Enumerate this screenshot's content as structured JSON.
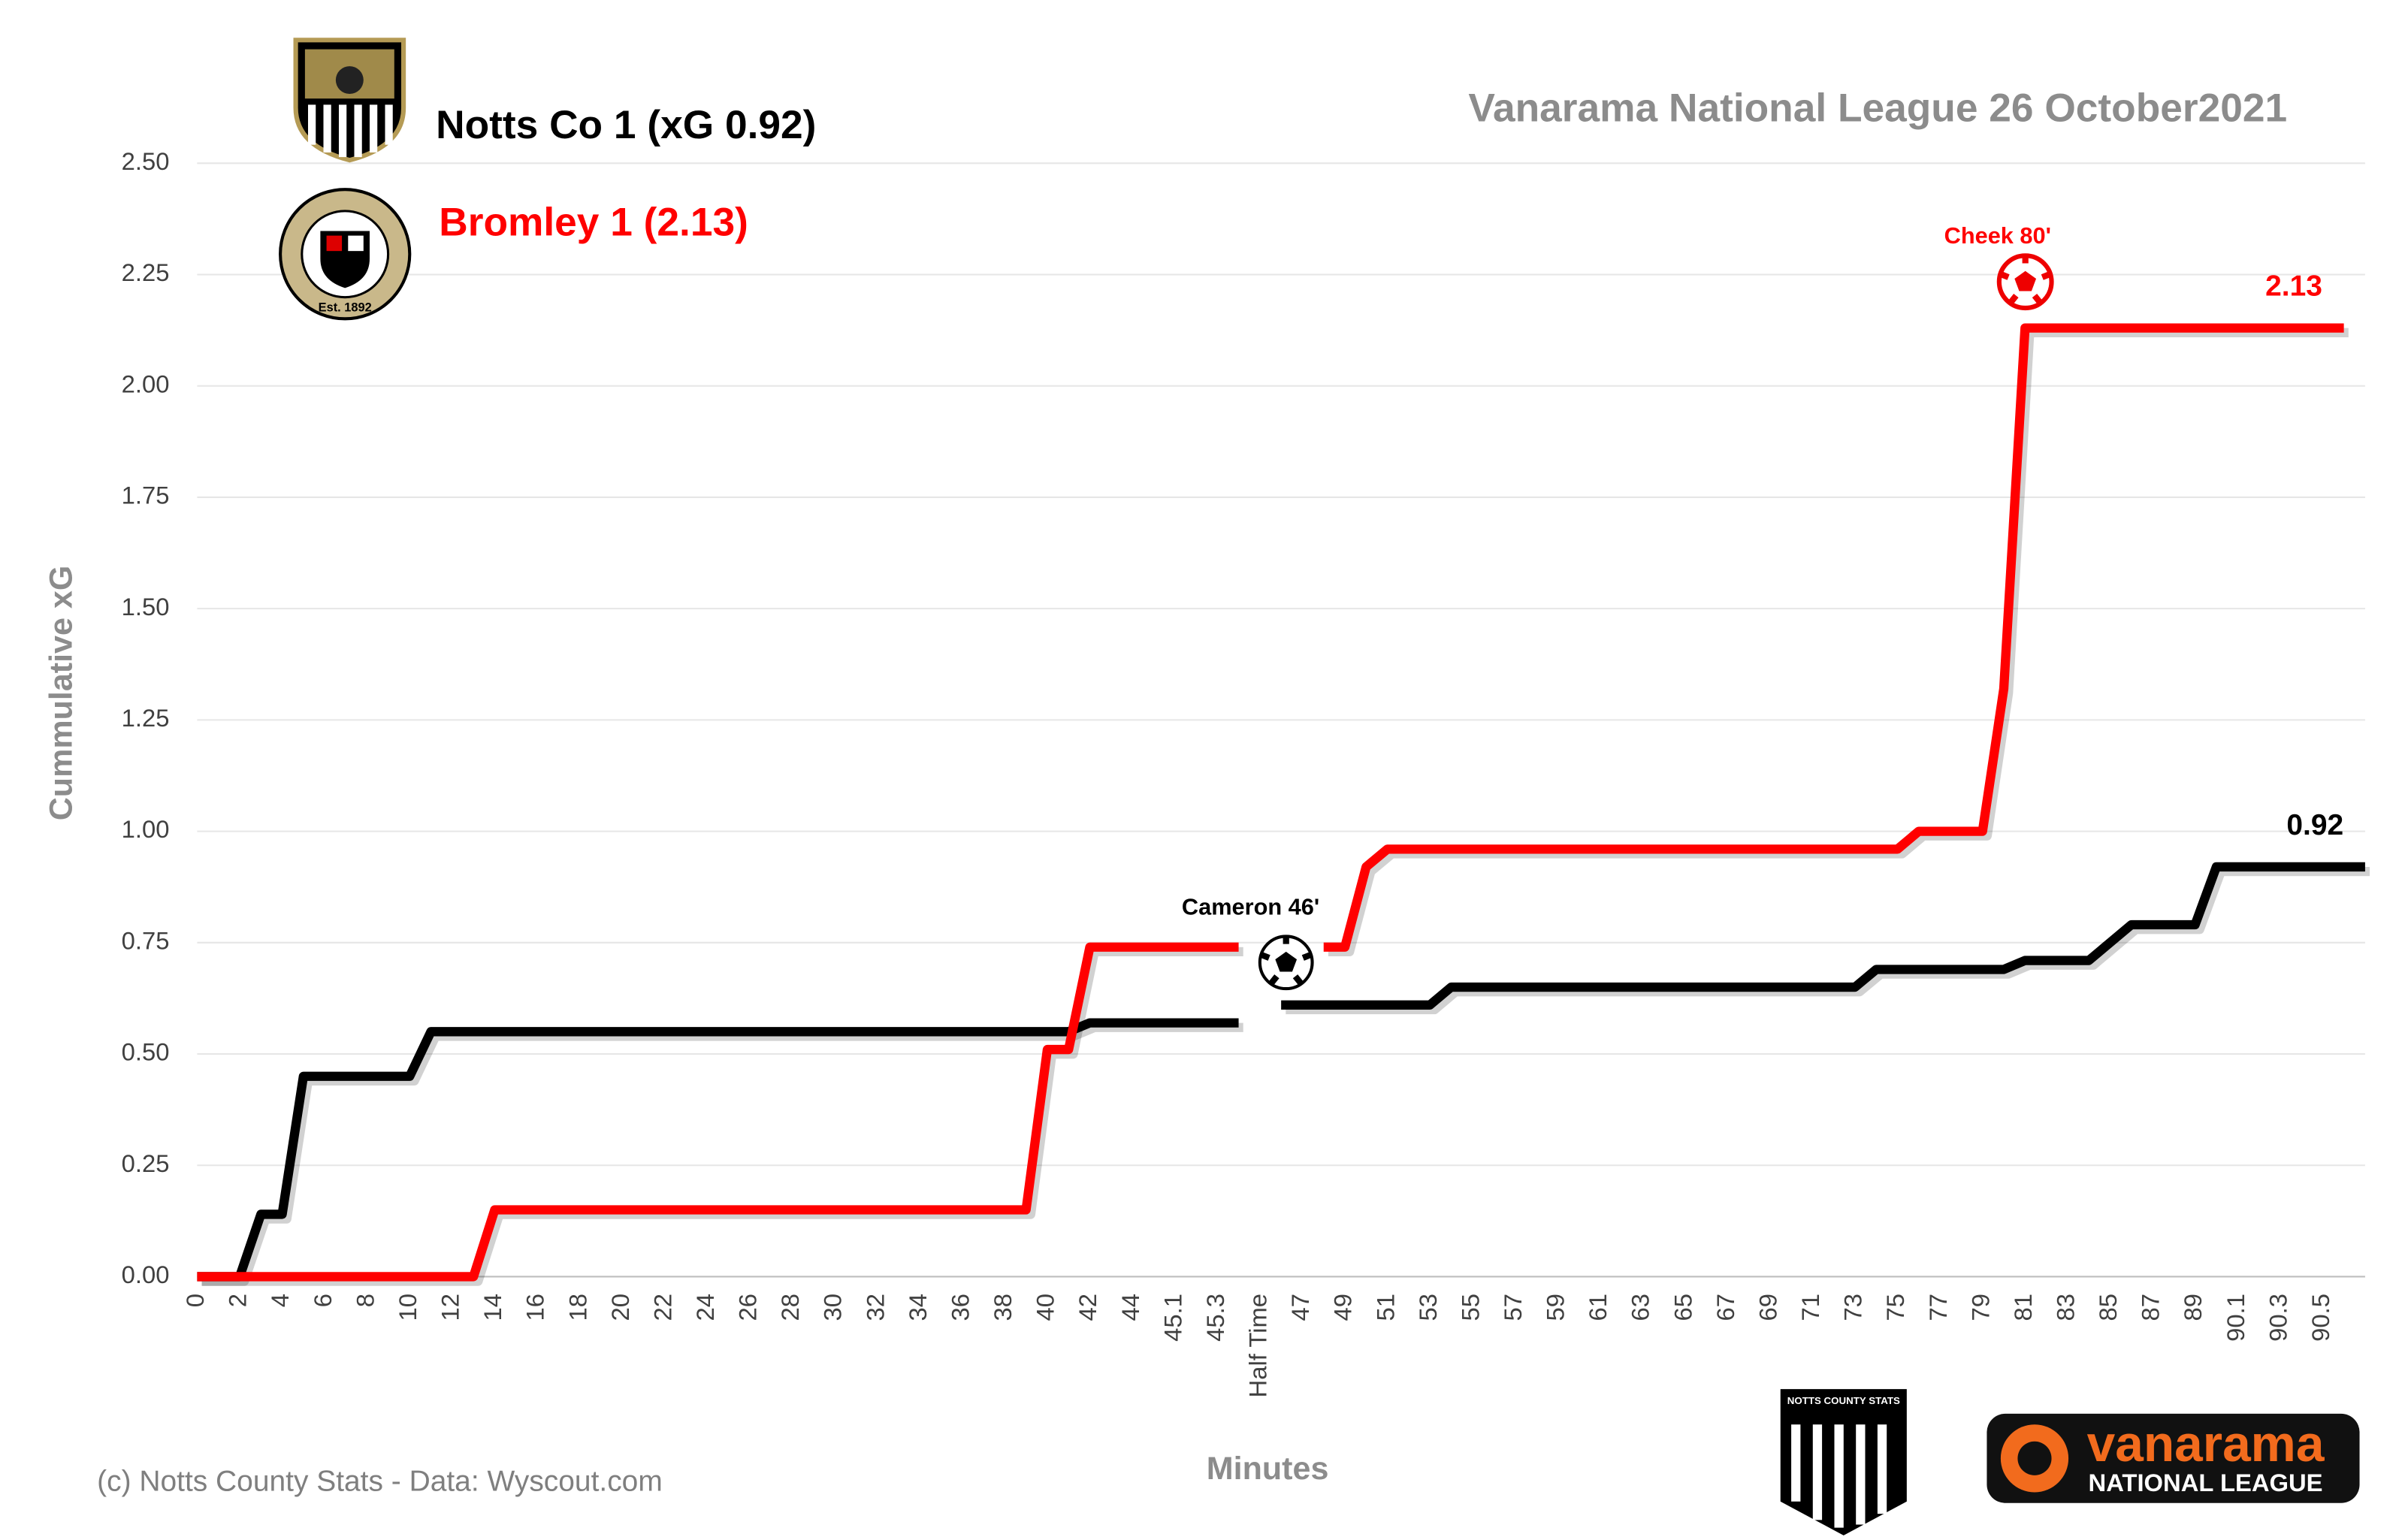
{
  "chart_data": {
    "type": "line",
    "title": "Vanarama National League  26 October2021",
    "x_label": "Minutes",
    "y_label": "Cummulative  xG",
    "credit": "(c) Notts County Stats - Data: Wyscout.com",
    "categories": [
      "0",
      null,
      "2",
      null,
      "4",
      null,
      "6",
      null,
      "8",
      null,
      "10",
      null,
      "12",
      null,
      "14",
      null,
      "16",
      null,
      "18",
      null,
      "20",
      null,
      "22",
      null,
      "24",
      null,
      "26",
      null,
      "28",
      null,
      "30",
      null,
      "32",
      null,
      "34",
      null,
      "36",
      null,
      "38",
      null,
      "40",
      null,
      "42",
      null,
      "44",
      null,
      "45.1",
      null,
      "45.3",
      null,
      "Half Time",
      null,
      "47",
      null,
      "49",
      null,
      "51",
      null,
      "53",
      null,
      "55",
      null,
      "57",
      null,
      "59",
      null,
      "61",
      null,
      "63",
      null,
      "65",
      null,
      "67",
      null,
      "69",
      null,
      "71",
      null,
      "73",
      null,
      "75",
      null,
      "77",
      null,
      "79",
      null,
      "81",
      null,
      "83",
      null,
      "85",
      null,
      "87",
      null,
      "89",
      null,
      "90.1",
      null,
      "90.3",
      null,
      "90.5",
      null,
      null
    ],
    "series": [
      {
        "name": "Notts Co 1 (xG 0.92)",
        "color": "#000000",
        "values": [
          0,
          0,
          0,
          0.14,
          0.14,
          0.45,
          0.45,
          0.45,
          0.45,
          0.45,
          0.45,
          0.55,
          0.55,
          0.55,
          0.55,
          0.55,
          0.55,
          0.55,
          0.55,
          0.55,
          0.55,
          0.55,
          0.55,
          0.55,
          0.55,
          0.55,
          0.55,
          0.55,
          0.55,
          0.55,
          0.55,
          0.55,
          0.55,
          0.55,
          0.55,
          0.55,
          0.55,
          0.55,
          0.55,
          0.55,
          0.55,
          0.55,
          0.57,
          0.57,
          0.57,
          0.57,
          0.57,
          0.57,
          0.57,
          0.57,
          null,
          0.61,
          0.61,
          0.61,
          0.61,
          0.61,
          0.61,
          0.61,
          0.61,
          0.65,
          0.65,
          0.65,
          0.65,
          0.65,
          0.65,
          0.65,
          0.65,
          0.65,
          0.65,
          0.65,
          0.65,
          0.65,
          0.65,
          0.65,
          0.65,
          0.65,
          0.65,
          0.65,
          0.65,
          0.69,
          0.69,
          0.69,
          0.69,
          0.69,
          0.69,
          0.69,
          0.71,
          0.71,
          0.71,
          0.71,
          0.75,
          0.79,
          0.79,
          0.79,
          0.79,
          0.92,
          0.92,
          0.92,
          0.92,
          0.92,
          0.92,
          0.92,
          0.92
        ]
      },
      {
        "name": "Bromley 1 (2.13)",
        "color": "#ff0000",
        "values": [
          0,
          0,
          0,
          0,
          0,
          0,
          0,
          0,
          0,
          0,
          0,
          0,
          0,
          0,
          0.15,
          0.15,
          0.15,
          0.15,
          0.15,
          0.15,
          0.15,
          0.15,
          0.15,
          0.15,
          0.15,
          0.15,
          0.15,
          0.15,
          0.15,
          0.15,
          0.15,
          0.15,
          0.15,
          0.15,
          0.15,
          0.15,
          0.15,
          0.15,
          0.15,
          0.15,
          0.51,
          0.51,
          0.74,
          0.74,
          0.74,
          0.74,
          0.74,
          0.74,
          0.74,
          0.74,
          null,
          null,
          null,
          0.74,
          0.74,
          0.92,
          0.96,
          0.96,
          0.96,
          0.96,
          0.96,
          0.96,
          0.96,
          0.96,
          0.96,
          0.96,
          0.96,
          0.96,
          0.96,
          0.96,
          0.96,
          0.96,
          0.96,
          0.96,
          0.96,
          0.96,
          0.96,
          0.96,
          0.96,
          0.96,
          0.96,
          1.0,
          1.0,
          1.0,
          1.0,
          1.32,
          2.13,
          2.13,
          2.13,
          2.13,
          2.13,
          2.13,
          2.13,
          2.13,
          2.13,
          2.13,
          2.13,
          2.13,
          2.13,
          2.13,
          2.13,
          2.13,
          null
        ]
      }
    ],
    "ylim": [
      0,
      2.5
    ],
    "yticks": [
      {
        "value": 0,
        "label": "0.00"
      },
      {
        "value": 0.25,
        "label": "0.25"
      },
      {
        "value": 0.5,
        "label": "0.50"
      },
      {
        "value": 0.75,
        "label": "0.75"
      },
      {
        "value": 1,
        "label": "1.00"
      },
      {
        "value": 1.25,
        "label": "1.25"
      },
      {
        "value": 1.5,
        "label": "1.50"
      },
      {
        "value": 1.75,
        "label": "1.75"
      },
      {
        "value": 2,
        "label": "2.00"
      },
      {
        "value": 2.25,
        "label": "2.25"
      },
      {
        "value": 2.5,
        "label": "2.50"
      }
    ],
    "grid": true,
    "annotations": [
      "Cameron 46'",
      "Cheek 80'"
    ],
    "logos": {
      "badge_text": "Est. 1892",
      "stats_logo": "NOTTS COUNTY STATS",
      "sponsor": "vanarama",
      "league": "NATIONAL LEAGUE"
    }
  }
}
